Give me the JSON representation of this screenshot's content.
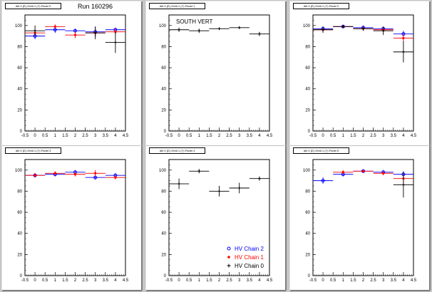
{
  "run_label": "Run 160296",
  "chart_data": [
    {
      "type": "scatter",
      "title": "det 0 (E) Orbit 1 (Y) Panel 0",
      "annotation": "",
      "xlim": [
        -0.5,
        4.5
      ],
      "ylim": [
        0,
        110
      ],
      "xticks": [
        "-0.5",
        "0",
        "0.5",
        "1",
        "1.5",
        "2",
        "2.5",
        "3",
        "3.5",
        "4",
        "4.5"
      ],
      "yticks": [
        "0",
        "20",
        "40",
        "60",
        "80",
        "100"
      ],
      "series": [
        {
          "name": "HV Chain 2",
          "color": "#0000ff",
          "marker": "circle",
          "x": [
            0,
            1,
            2,
            3,
            4
          ],
          "y": [
            90,
            96,
            95,
            94,
            96
          ],
          "xerr": 0.5,
          "yerr": [
            3,
            3,
            2,
            5,
            2
          ]
        },
        {
          "name": "HV Chain 1",
          "color": "#ff0000",
          "marker": "star",
          "x": [
            0,
            1,
            2,
            3,
            4
          ],
          "y": [
            93,
            99,
            91,
            93,
            94
          ],
          "xerr": 0.5,
          "yerr": [
            3,
            2,
            3,
            3,
            3
          ]
        },
        {
          "name": "HV Chain 0",
          "color": "#000000",
          "marker": "plus",
          "x": [
            0,
            3,
            4
          ],
          "y": [
            95,
            93,
            84
          ],
          "xerr": 0.5,
          "yerr": [
            5,
            6,
            10
          ]
        }
      ]
    },
    {
      "type": "scatter",
      "title": "det 0 (E) Orbit 1 (Y) Panel 1",
      "annotation": "SOUTH VERT",
      "xlim": [
        -0.5,
        4.5
      ],
      "ylim": [
        0,
        110
      ],
      "xticks": [
        "-0.5",
        "0",
        "0.5",
        "1",
        "1.5",
        "2",
        "2.5",
        "3",
        "3.5",
        "4",
        "4.5"
      ],
      "yticks": [
        "0",
        "20",
        "40",
        "60",
        "80",
        "100"
      ],
      "series": [
        {
          "name": "HV Chain 0",
          "color": "#000000",
          "marker": "plus",
          "x": [
            0,
            1,
            2,
            3,
            4
          ],
          "y": [
            96,
            95,
            97,
            98,
            92
          ],
          "xerr": 0.5,
          "yerr": [
            2,
            2,
            1,
            1,
            2
          ]
        }
      ]
    },
    {
      "type": "scatter",
      "title": "det 0 (E) Orbit 1 (Y) Panel 2",
      "annotation": "",
      "xlim": [
        -0.5,
        4.5
      ],
      "ylim": [
        0,
        110
      ],
      "xticks": [
        "-0.5",
        "0",
        "0.5",
        "1",
        "1.5",
        "2",
        "2.5",
        "3",
        "3.5",
        "4",
        "4.5"
      ],
      "yticks": [
        "0",
        "20",
        "40",
        "60",
        "80",
        "100"
      ],
      "series": [
        {
          "name": "HV Chain 2",
          "color": "#0000ff",
          "marker": "circle",
          "x": [
            0,
            1,
            2,
            3,
            4
          ],
          "y": [
            97,
            99,
            98,
            97,
            92
          ],
          "xerr": 0.5,
          "yerr": [
            2,
            1,
            2,
            2,
            3
          ]
        },
        {
          "name": "HV Chain 1",
          "color": "#ff0000",
          "marker": "star",
          "x": [
            0,
            1,
            2,
            3,
            4
          ],
          "y": [
            96,
            99,
            97,
            96,
            88
          ],
          "xerr": 0.5,
          "yerr": [
            2,
            1,
            2,
            2,
            4
          ]
        },
        {
          "name": "HV Chain 0",
          "color": "#000000",
          "marker": "plus",
          "x": [
            0,
            1,
            2,
            3,
            4
          ],
          "y": [
            96,
            99,
            97,
            95,
            75
          ],
          "xerr": 0.5,
          "yerr": [
            3,
            1,
            2,
            4,
            10
          ]
        }
      ]
    },
    {
      "type": "scatter",
      "title": "det 0 (E) Orbit 1 (Y) Panel 3",
      "annotation": "",
      "xlim": [
        -0.5,
        4.5
      ],
      "ylim": [
        0,
        110
      ],
      "xticks": [
        "-0.5",
        "0",
        "0.5",
        "1",
        "1.5",
        "2",
        "2.5",
        "3",
        "3.5",
        "4",
        "4.5"
      ],
      "yticks": [
        "0",
        "20",
        "40",
        "60",
        "80",
        "100"
      ],
      "series": [
        {
          "name": "HV Chain 2",
          "color": "#0000ff",
          "marker": "circle",
          "x": [
            0,
            1,
            2,
            3,
            4
          ],
          "y": [
            95,
            96,
            98,
            93,
            95
          ],
          "xerr": 0.5,
          "yerr": [
            2,
            2,
            2,
            2,
            2
          ]
        },
        {
          "name": "HV Chain 1",
          "color": "#ff0000",
          "marker": "star",
          "x": [
            0,
            1,
            2,
            3,
            4
          ],
          "y": [
            95,
            97,
            96,
            97,
            93
          ],
          "xerr": 0.5,
          "yerr": [
            2,
            2,
            2,
            3,
            2
          ]
        }
      ]
    },
    {
      "type": "scatter",
      "title": "det 0 (E) Orbit 1 (Y) Panel 4",
      "annotation": "",
      "xlim": [
        -0.5,
        4.5
      ],
      "ylim": [
        0,
        110
      ],
      "xticks": [
        "-0.5",
        "0",
        "0.5",
        "1",
        "1.5",
        "2",
        "2.5",
        "3",
        "3.5",
        "4",
        "4.5"
      ],
      "yticks": [
        "0",
        "20",
        "40",
        "60",
        "80",
        "100"
      ],
      "legend": {
        "position": "bottom-right",
        "entries": [
          "HV Chain 2",
          "HV Chain 1",
          "HV Chain 0"
        ]
      },
      "series": [
        {
          "name": "HV Chain 0",
          "color": "#000000",
          "marker": "plus",
          "x": [
            0,
            1,
            2,
            3,
            4
          ],
          "y": [
            87,
            99,
            80,
            83,
            92
          ],
          "xerr": 0.5,
          "yerr": [
            5,
            2,
            5,
            5,
            2
          ]
        }
      ]
    },
    {
      "type": "scatter",
      "title": "det 0 (E) Orbit 1 (Y) Panel 5",
      "annotation": "",
      "xlim": [
        -0.5,
        4.5
      ],
      "ylim": [
        0,
        110
      ],
      "xticks": [
        "-0.5",
        "0",
        "0.5",
        "1",
        "1.5",
        "2",
        "2.5",
        "3",
        "3.5",
        "4",
        "4.5"
      ],
      "yticks": [
        "0",
        "20",
        "40",
        "60",
        "80",
        "100"
      ],
      "series": [
        {
          "name": "HV Chain 2",
          "color": "#0000ff",
          "marker": "circle",
          "x": [
            0,
            1,
            2,
            3,
            4
          ],
          "y": [
            90,
            96,
            99,
            98,
            96
          ],
          "xerr": 0.5,
          "yerr": [
            3,
            2,
            1,
            2,
            3
          ]
        },
        {
          "name": "HV Chain 1",
          "color": "#ff0000",
          "marker": "star",
          "x": [
            1,
            2,
            3,
            4
          ],
          "y": [
            98,
            99,
            97,
            92
          ],
          "xerr": 0.5,
          "yerr": [
            2,
            1,
            2,
            5
          ]
        },
        {
          "name": "HV Chain 0",
          "color": "#000000",
          "marker": "plus",
          "x": [
            4
          ],
          "y": [
            86
          ],
          "xerr": 0.5,
          "yerr": [
            12
          ]
        }
      ]
    }
  ]
}
